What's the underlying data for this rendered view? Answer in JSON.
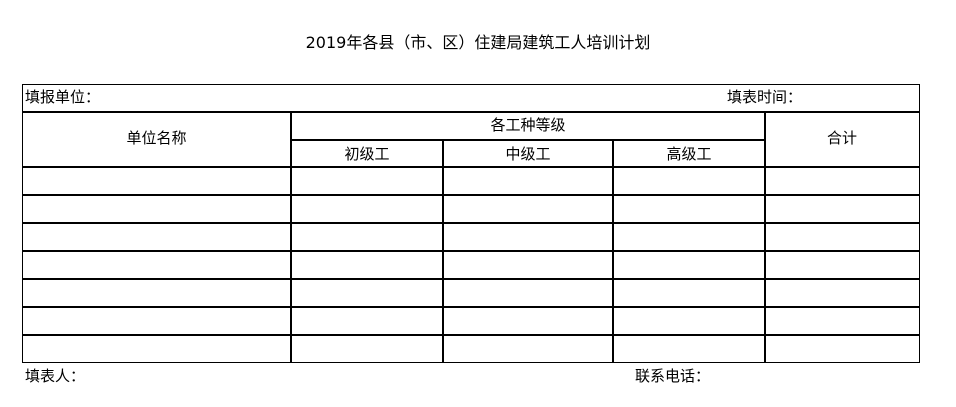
{
  "title": "2019年各县（市、区）住建局建筑工人培训计划",
  "form": {
    "reporting_unit_label": "填报单位：",
    "reporting_time_label": "填表时间：",
    "filled_by_label": "填表人：",
    "phone_label": "联系电话："
  },
  "table": {
    "headers": {
      "unit_name": "单位名称",
      "grade_group": "各工种等级",
      "junior": "初级工",
      "intermediate": "中级工",
      "senior": "高级工",
      "total": "合计"
    },
    "rows": [
      [
        "",
        "",
        "",
        "",
        ""
      ],
      [
        "",
        "",
        "",
        "",
        ""
      ],
      [
        "",
        "",
        "",
        "",
        ""
      ],
      [
        "",
        "",
        "",
        "",
        ""
      ],
      [
        "",
        "",
        "",
        "",
        ""
      ],
      [
        "",
        "",
        "",
        "",
        ""
      ],
      [
        "",
        "",
        "",
        "",
        ""
      ]
    ]
  }
}
